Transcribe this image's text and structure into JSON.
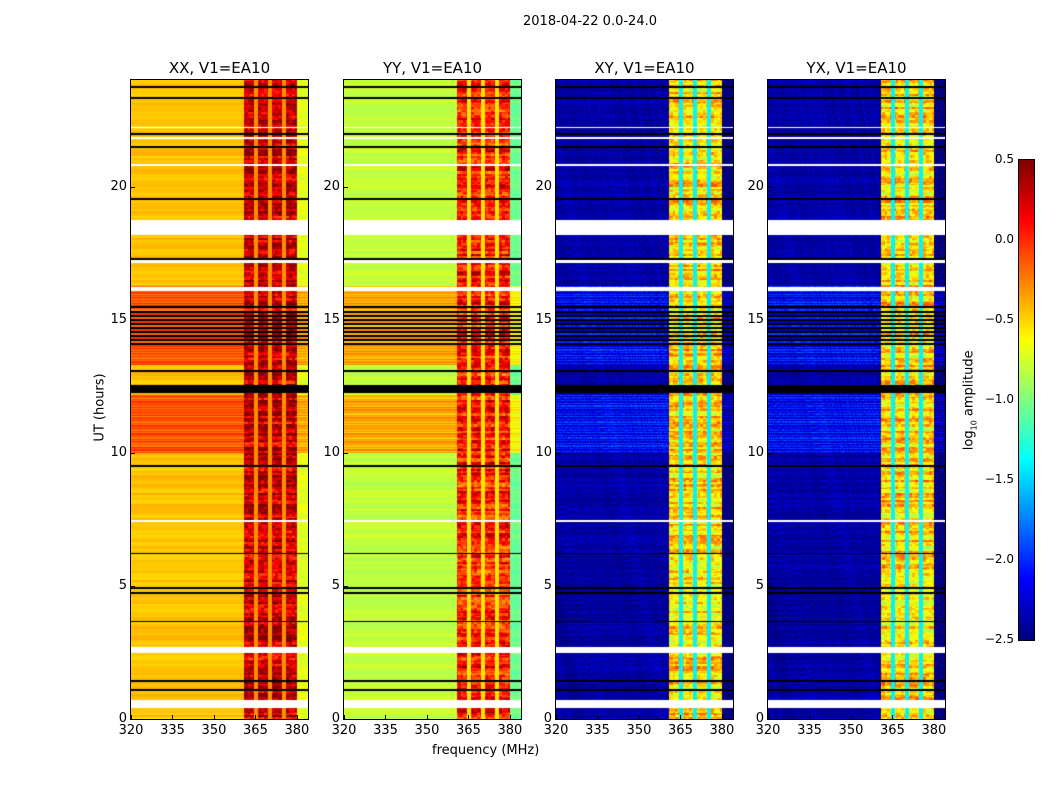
{
  "chart_data": {
    "type": "heatmap",
    "title": "2018-04-22 0.0-24.0",
    "xlabel": "frequency (MHz)",
    "ylabel": "UT (hours)",
    "xlim": [
      320,
      384
    ],
    "ylim": [
      0,
      24
    ],
    "xticks": [
      "320",
      "335",
      "350",
      "365",
      "380"
    ],
    "yticks": [
      "0",
      "5",
      "10",
      "15",
      "20"
    ],
    "colorbar": {
      "label": "log10 amplitude",
      "label_main": "log",
      "label_sub": "10",
      "label_rest": " amplitude",
      "range": [
        -2.5,
        0.5
      ],
      "ticks": [
        "0.5",
        "0.0",
        "−0.5",
        "−1.0",
        "−1.5",
        "−2.0",
        "−2.5"
      ],
      "colormap": "jet"
    },
    "band_mhz": [
      360.5,
      380
    ],
    "band_gaps_mhz": [
      365,
      370,
      375
    ],
    "flagged_hours": [
      [
        0.42,
        0.72
      ],
      [
        2.48,
        2.74
      ],
      [
        7.42,
        7.5
      ],
      [
        16.1,
        16.25
      ],
      [
        17.15,
        17.25
      ],
      [
        18.2,
        18.75
      ],
      [
        19.5,
        19.6
      ],
      [
        20.8,
        20.88
      ],
      [
        21.8,
        21.86
      ],
      [
        22.2,
        22.26
      ]
    ],
    "black_line_hours": [
      1.1,
      1.45,
      3.68,
      4.76,
      4.95,
      6.23,
      9.53,
      12.3,
      12.38,
      12.45,
      12.52,
      13.1,
      14.1,
      14.25,
      14.4,
      14.55,
      14.7,
      14.85,
      15.0,
      15.15,
      15.3,
      15.5,
      17.3,
      19.55,
      21.5,
      22.0,
      23.35,
      23.75
    ],
    "panels": [
      {
        "name": "XX, V1=EA10",
        "off_band": -0.45,
        "in_band": 0.3,
        "orange_hours": [
          [
            10.0,
            12.2
          ],
          [
            13.3,
            16.3
          ]
        ],
        "orange_off_band": -0.2
      },
      {
        "name": "YY, V1=EA10",
        "off_band": -0.8,
        "in_band": 0.05,
        "orange_hours": [
          [
            10.0,
            12.2
          ],
          [
            13.3,
            16.3
          ]
        ],
        "orange_off_band": -0.45
      },
      {
        "name": "XY, V1=EA10",
        "off_band": -2.4,
        "in_band": -0.5,
        "orange_hours": [
          [
            10.0,
            12.2
          ],
          [
            13.3,
            16.3
          ]
        ],
        "orange_off_band": -2.0
      },
      {
        "name": "YX, V1=EA10",
        "off_band": -2.4,
        "in_band": -0.5,
        "orange_hours": [
          [
            10.0,
            12.2
          ],
          [
            13.3,
            16.3
          ]
        ],
        "orange_off_band": -2.0
      }
    ]
  }
}
